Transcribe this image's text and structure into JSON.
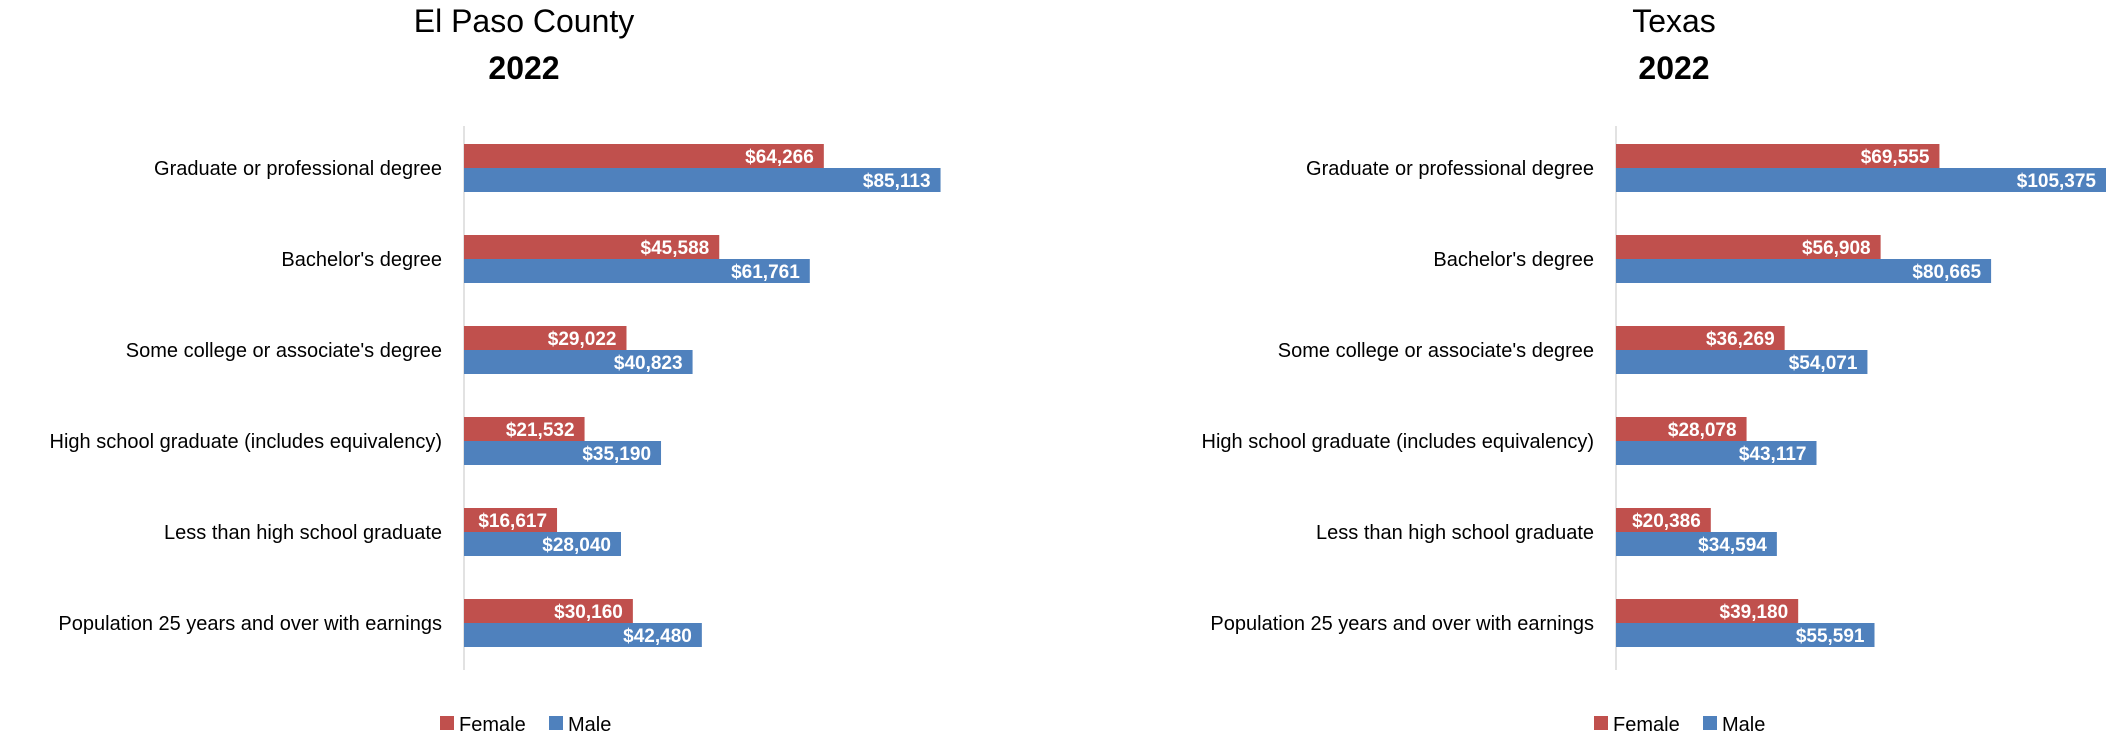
{
  "chart_data": [
    {
      "type": "bar",
      "orientation": "horizontal",
      "title": "El Paso County",
      "subtitle": "2022",
      "categories": [
        "Graduate or professional degree",
        "Bachelor's degree",
        "Some college or associate's degree",
        "High school graduate (includes equivalency)",
        "Less than high school graduate",
        "Population 25 years and over with earnings"
      ],
      "series": [
        {
          "name": "Female",
          "color": "#c0504d",
          "values": [
            64266,
            45588,
            29022,
            21532,
            16617,
            30160
          ],
          "labels": [
            "$64,266",
            "$45,588",
            "$29,022",
            "$21,532",
            "$16,617",
            "$30,160"
          ]
        },
        {
          "name": "Male",
          "color": "#4f81bd",
          "values": [
            85113,
            61761,
            40823,
            35190,
            28040,
            42480
          ],
          "labels": [
            "$85,113",
            "$61,761",
            "$40,823",
            "$35,190",
            "$28,040",
            "$42,480"
          ]
        }
      ],
      "xlim": [
        0,
        105375
      ],
      "grid": false,
      "legend_position": "bottom"
    },
    {
      "type": "bar",
      "orientation": "horizontal",
      "title": "Texas",
      "subtitle": "2022",
      "categories": [
        "Graduate or professional degree",
        "Bachelor's degree",
        "Some college or associate's degree",
        "High school graduate (includes equivalency)",
        "Less than high school graduate",
        "Population 25 years and over with earnings"
      ],
      "series": [
        {
          "name": "Female",
          "color": "#c0504d",
          "values": [
            69555,
            56908,
            36269,
            28078,
            20386,
            39180
          ],
          "labels": [
            "$69,555",
            "$56,908",
            "$36,269",
            "$28,078",
            "$20,386",
            "$39,180"
          ]
        },
        {
          "name": "Male",
          "color": "#4f81bd",
          "values": [
            105375,
            80665,
            54071,
            43117,
            34594,
            55591
          ],
          "labels": [
            "$105,375",
            "$80,665",
            "$54,071",
            "$43,117",
            "$34,594",
            "$55,591"
          ]
        }
      ],
      "xlim": [
        0,
        105375
      ],
      "grid": false,
      "legend_position": "bottom"
    }
  ]
}
